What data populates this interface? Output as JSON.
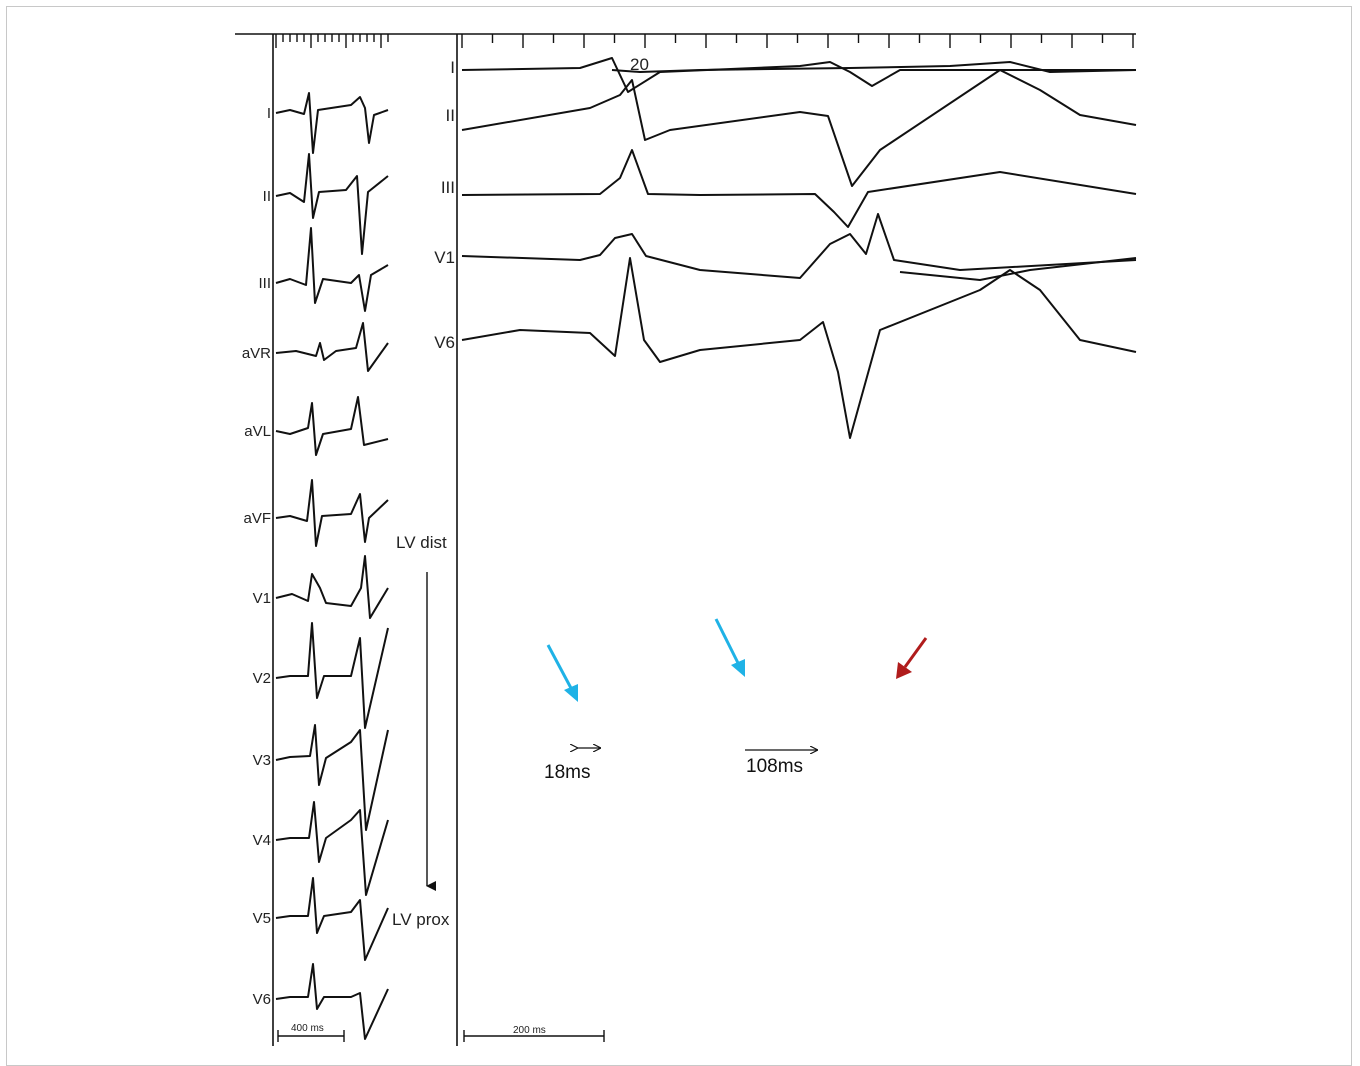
{
  "left_panel": {
    "leads": [
      "I",
      "II",
      "III",
      "aVR",
      "aVL",
      "aVF",
      "V1",
      "V2",
      "V3",
      "V4",
      "V5",
      "V6"
    ],
    "scale_label": "400 ms"
  },
  "right_panel": {
    "surface_leads": [
      "I",
      "II",
      "III",
      "V1",
      "V6"
    ],
    "beat_number": "20",
    "electrograms": {
      "distal_label": "LV dist",
      "proximal_label": "LV prox"
    },
    "measurements": {
      "short_interval": "18ms",
      "long_interval": "108ms"
    },
    "scale_label": "200 ms"
  },
  "colors": {
    "trace": "#111111",
    "arrow_blue": "#1fb2e6",
    "arrow_red": "#b01c1c"
  }
}
